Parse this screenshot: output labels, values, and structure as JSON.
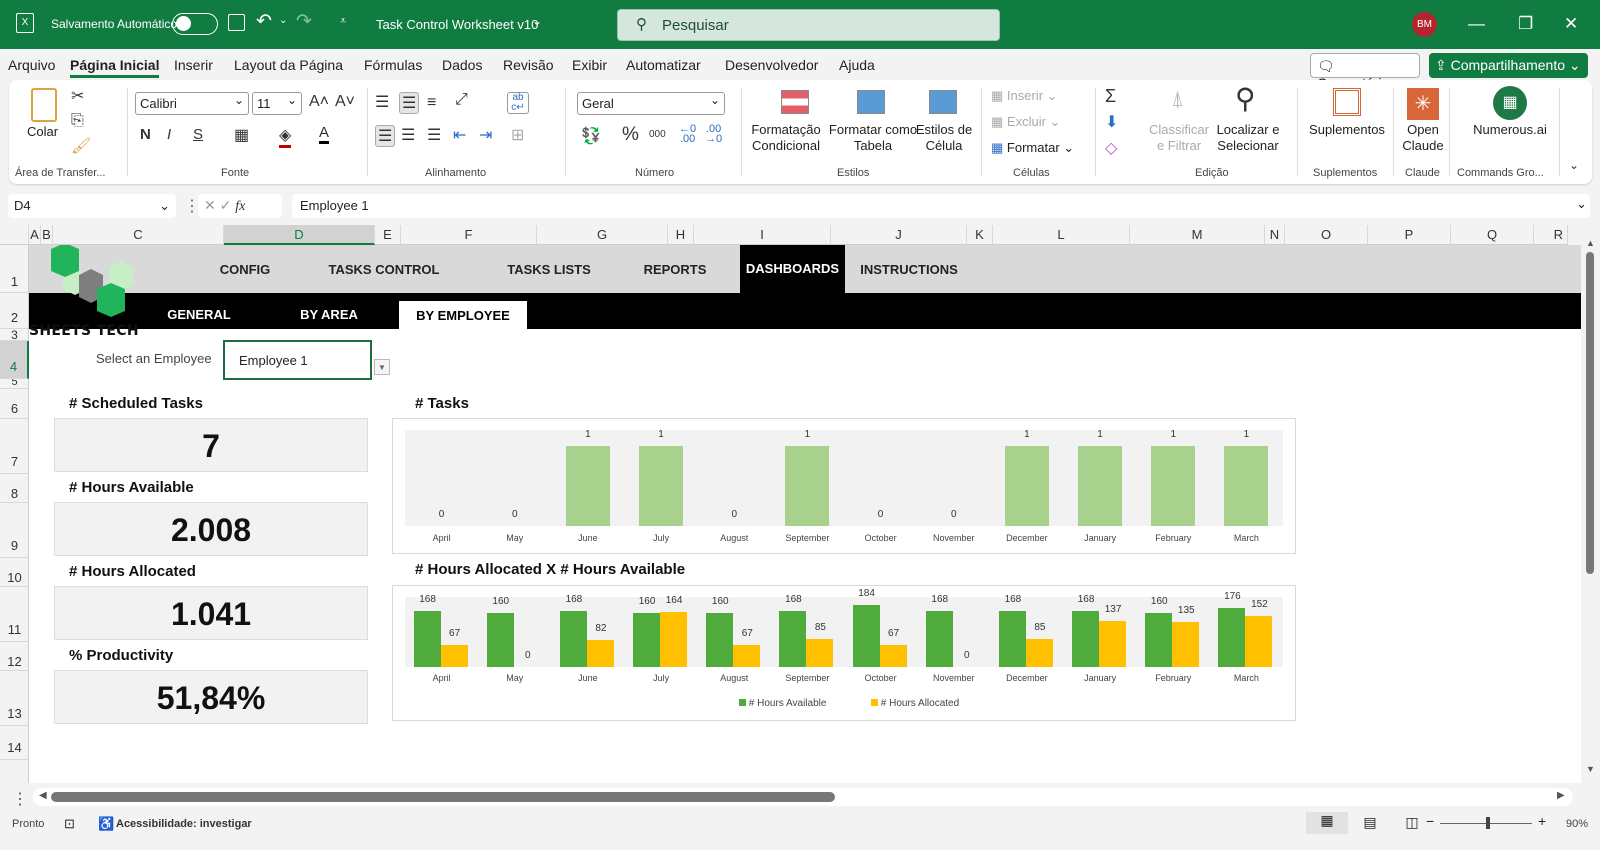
{
  "titlebar": {
    "autosave_label": "Salvamento Automático",
    "doc_title": "Task Control Worksheet v10",
    "search_placeholder": "Pesquisar",
    "user_initials": "BM"
  },
  "menu": [
    "Arquivo",
    "Página Inicial",
    "Inserir",
    "Layout da Página",
    "Fórmulas",
    "Dados",
    "Revisão",
    "Exibir",
    "Automatizar",
    "Desenvolvedor",
    "Ajuda"
  ],
  "menu_actions": {
    "comments": "Comentários",
    "share": "Compartilhamento"
  },
  "ribbon": {
    "clipboard": {
      "paste": "Colar",
      "group": "Área de Transfer..."
    },
    "font": {
      "name": "Calibri",
      "size": "11",
      "bold": "N",
      "italic": "I",
      "underline": "S",
      "group": "Fonte"
    },
    "alignment": {
      "group": "Alinhamento"
    },
    "number": {
      "format": "Geral",
      "percent": "%",
      "thousands": "000",
      "group": "Número"
    },
    "styles": {
      "conditional": "Formatação Condicional",
      "as_table": "Formatar como Tabela",
      "cell_styles": "Estilos de Célula",
      "group": "Estilos"
    },
    "cells": {
      "insert": "Inserir",
      "delete": "Excluir",
      "format": "Formatar",
      "group": "Células"
    },
    "editing": {
      "sort": "Classificar e Filtrar",
      "find": "Localizar e Selecionar",
      "group": "Edição"
    },
    "addins": {
      "label": "Suplementos",
      "group": "Suplementos"
    },
    "claude": {
      "label": "Open Claude",
      "group": "Claude"
    },
    "numerous": {
      "label": "Numerous.ai",
      "group": "Commands Gro..."
    }
  },
  "formula_bar": {
    "name_box": "D4",
    "fx": "fx",
    "value": "Employee 1"
  },
  "columns": [
    "A",
    "B",
    "C",
    "D",
    "E",
    "F",
    "G",
    "H",
    "I",
    "J",
    "K",
    "L",
    "M",
    "N",
    "O",
    "P",
    "Q",
    "R"
  ],
  "rows": [
    "1",
    "2",
    "3",
    "4",
    "5",
    "6",
    "7",
    "8",
    "9",
    "10",
    "11",
    "12",
    "13",
    "14"
  ],
  "sheet": {
    "logo_text": "SHEETS TECH",
    "nav_tabs": [
      "CONFIG",
      "TASKS CONTROL",
      "TASKS LISTS",
      "REPORTS",
      "DASHBOARDS",
      "INSTRUCTIONS"
    ],
    "active_nav": "DASHBOARDS",
    "sub_tabs": [
      "GENERAL",
      "BY AREA",
      "BY EMPLOYEE"
    ],
    "active_sub": "BY EMPLOYEE",
    "select_label": "Select an Employee",
    "selected_employee": "Employee 1",
    "kpis": [
      {
        "label": "# Scheduled Tasks",
        "value": "7"
      },
      {
        "label": "# Hours Available",
        "value": "2.008"
      },
      {
        "label": "# Hours Allocated",
        "value": "1.041"
      },
      {
        "label": "% Productivity",
        "value": "51,84%"
      }
    ]
  },
  "colors": {
    "excel_green": "#107c41",
    "tasks_bar": "#a9d18e",
    "available": "#4eab3c",
    "allocated": "#ffc000"
  },
  "chart_data": [
    {
      "type": "bar",
      "title": "# Tasks",
      "categories": [
        "April",
        "May",
        "June",
        "July",
        "August",
        "September",
        "October",
        "November",
        "December",
        "January",
        "February",
        "March"
      ],
      "values": [
        0,
        0,
        1,
        1,
        0,
        1,
        0,
        0,
        1,
        1,
        1,
        1
      ],
      "xlabel": "",
      "ylabel": "",
      "ylim": [
        0,
        1
      ],
      "grid": false
    },
    {
      "type": "bar",
      "title": "# Hours Allocated  X  # Hours Available",
      "categories": [
        "April",
        "May",
        "June",
        "July",
        "August",
        "September",
        "October",
        "November",
        "December",
        "January",
        "February",
        "March"
      ],
      "series": [
        {
          "name": "# Hours Available",
          "values": [
            168,
            160,
            168,
            160,
            160,
            168,
            184,
            168,
            168,
            168,
            160,
            176
          ]
        },
        {
          "name": "# Hours Allocated",
          "values": [
            67,
            0,
            82,
            164,
            67,
            85,
            67,
            0,
            85,
            137,
            135,
            152
          ]
        }
      ],
      "legend_position": "bottom",
      "ylim": [
        0,
        190
      ],
      "grid": false
    }
  ],
  "status": {
    "ready": "Pronto",
    "accessibility": "Acessibilidade: investigar",
    "zoom": "90%"
  }
}
